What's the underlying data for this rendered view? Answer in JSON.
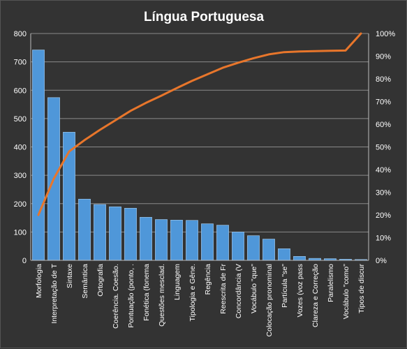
{
  "chart_data": {
    "type": "bar",
    "title": "Língua  Portuguesa",
    "categories": [
      "Morfologia",
      "Interpretação de T",
      "Sintaxe",
      "Semântica",
      "Ortografia",
      "Coerência. Coesão.",
      "Pontuação (ponto, .",
      "Fonética (fonema",
      "Questões mesclad.",
      "Linguagem",
      "Tipologia e Gêne.",
      "Regência",
      "Reescrita de Fr",
      "Concordância (V",
      "Vocábulo \"que\"",
      "Colocação pronominal",
      "Partícula \"se\"",
      "Vozes (voz pass",
      "Clareza e Correção",
      "Paralelismo",
      "Vocábulo \"como\"",
      "Tipos de discur"
    ],
    "series": [
      {
        "type": "bar",
        "axis": "left",
        "color": "#4f97d9",
        "values": [
          742,
          574,
          452,
          216,
          197,
          189,
          184,
          152,
          144,
          142,
          141,
          129,
          124,
          100,
          87,
          75,
          41,
          14,
          7,
          6,
          4,
          3
        ]
      },
      {
        "type": "line",
        "axis": "right",
        "color": "#e8762b",
        "values": [
          20,
          36,
          48,
          53,
          57.5,
          61.7,
          65.9,
          69.4,
          72.6,
          75.9,
          79.1,
          82,
          84.9,
          87.1,
          89.1,
          90.8,
          91.8,
          92.1,
          92.2,
          92.4,
          92.5,
          100
        ]
      }
    ],
    "y_left": {
      "min": 0,
      "max": 800,
      "ticks": [
        "0",
        "100",
        "200",
        "300",
        "400",
        "500",
        "600",
        "700",
        "800"
      ]
    },
    "y_right": {
      "min": 0,
      "max": 100,
      "ticks": [
        "0%",
        "10%",
        "20%",
        "30%",
        "40%",
        "50%",
        "60%",
        "70%",
        "80%",
        "90%",
        "100%"
      ]
    },
    "grid": true,
    "legend": "none",
    "colors": {
      "background": "#333333",
      "grid": "#8a8a8a",
      "bar": "#4f97d9",
      "line": "#e8762b",
      "text": "#ffffff"
    }
  }
}
